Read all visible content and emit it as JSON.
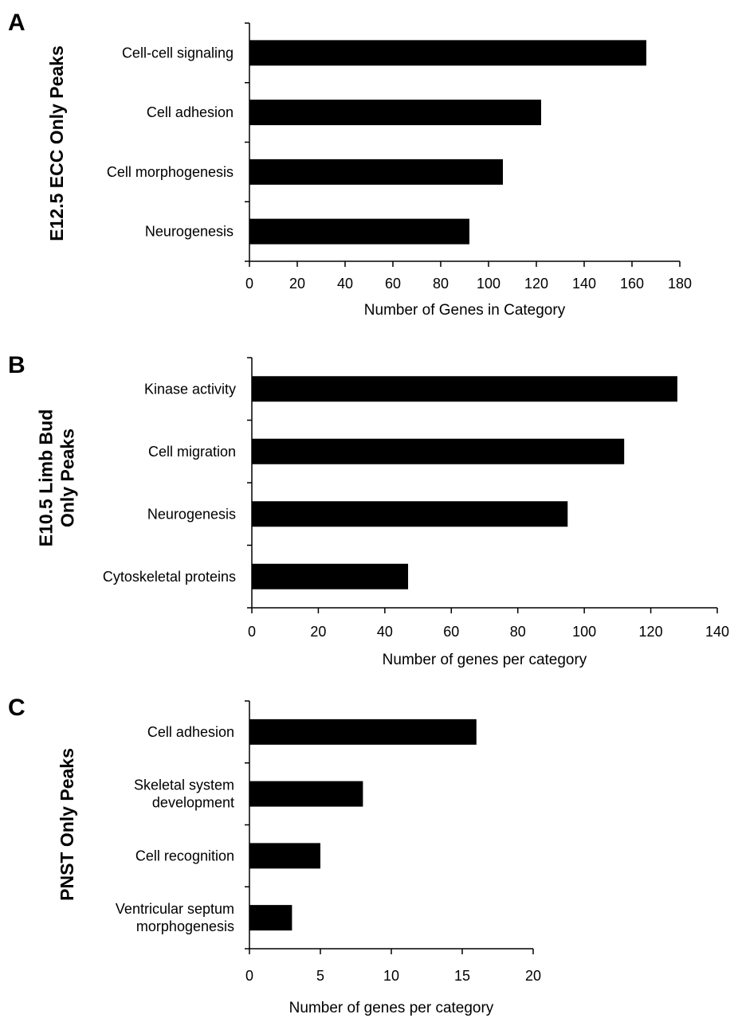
{
  "chart_data": [
    {
      "type": "bar",
      "orientation": "horizontal",
      "panel": "A",
      "ylabel": [
        "E12.5 ECC Only Peaks"
      ],
      "xlabel": "Number of Genes in Category",
      "categories": [
        [
          "Cell-cell signaling"
        ],
        [
          "Cell adhesion"
        ],
        [
          "Cell morphogenesis"
        ],
        [
          "Neurogenesis"
        ]
      ],
      "values": [
        166,
        122,
        106,
        92
      ],
      "xlim": [
        0,
        180
      ],
      "xticks": [
        0,
        20,
        40,
        60,
        80,
        100,
        120,
        140,
        160,
        180
      ],
      "bar_color": "#000000",
      "grid": false
    },
    {
      "type": "bar",
      "orientation": "horizontal",
      "panel": "B",
      "ylabel": [
        "E10.5 Limb Bud",
        "Only Peaks"
      ],
      "xlabel": "Number of genes per category",
      "categories": [
        [
          "Kinase activity"
        ],
        [
          "Cell migration"
        ],
        [
          "Neurogenesis"
        ],
        [
          "Cytoskeletal proteins"
        ]
      ],
      "values": [
        128,
        112,
        95,
        47
      ],
      "xlim": [
        0,
        140
      ],
      "xticks": [
        0,
        20,
        40,
        60,
        80,
        100,
        120,
        140
      ],
      "bar_color": "#000000",
      "grid": false
    },
    {
      "type": "bar",
      "orientation": "horizontal",
      "panel": "C",
      "ylabel": [
        "PNST Only Peaks"
      ],
      "xlabel": "Number of genes per category",
      "categories": [
        [
          "Cell adhesion"
        ],
        [
          "Skeletal system",
          "development"
        ],
        [
          "Cell recognition"
        ],
        [
          "Ventricular septum",
          "morphogenesis"
        ]
      ],
      "values": [
        16,
        8,
        5,
        3
      ],
      "xlim": [
        0,
        20
      ],
      "xticks": [
        0,
        5,
        10,
        15,
        20
      ],
      "bar_color": "#000000",
      "grid": false
    }
  ]
}
